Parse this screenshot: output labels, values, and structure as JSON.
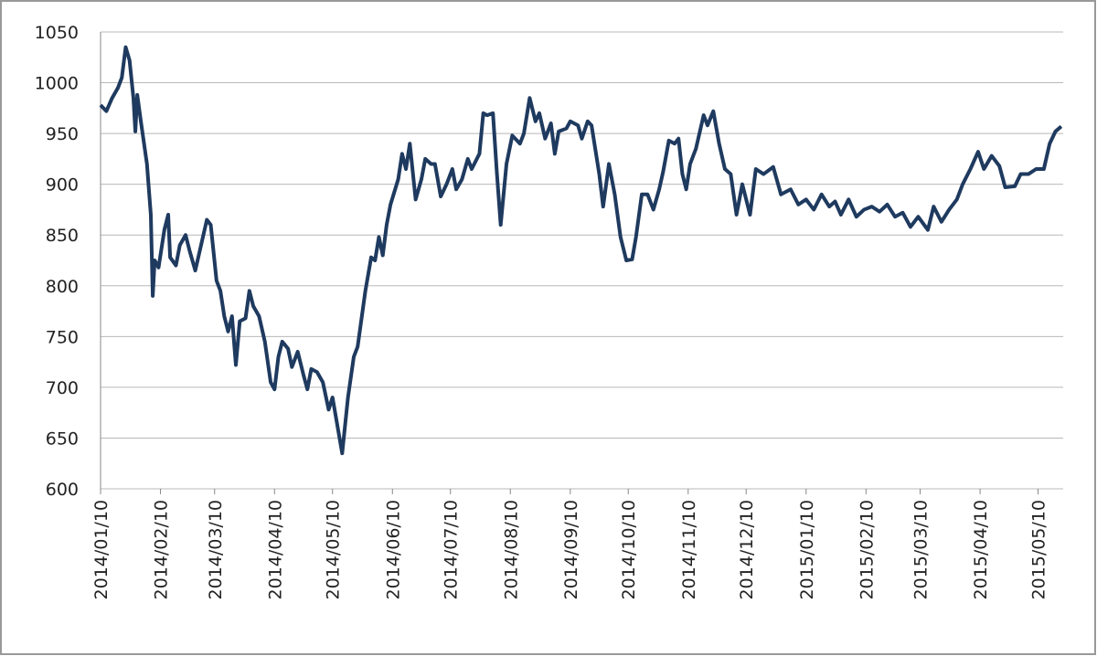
{
  "chart_data": {
    "type": "line",
    "color": "#1f3a5f",
    "grid": true,
    "x": [
      "2014/01/10",
      "2014/01/13",
      "2014/01/16",
      "2014/01/19",
      "2014/01/21",
      "2014/01/23",
      "2014/01/25",
      "2014/01/27",
      "2014/01/28",
      "2014/01/29",
      "2014/01/31",
      "2014/02/03",
      "2014/02/05",
      "2014/02/06",
      "2014/02/07",
      "2014/02/09",
      "2014/02/12",
      "2014/02/14",
      "2014/02/15",
      "2014/02/18",
      "2014/02/20",
      "2014/02/23",
      "2014/02/25",
      "2014/02/28",
      "2014/03/03",
      "2014/03/06",
      "2014/03/08",
      "2014/03/11",
      "2014/03/13",
      "2014/03/15",
      "2014/03/17",
      "2014/03/19",
      "2014/03/21",
      "2014/03/23",
      "2014/03/26",
      "2014/03/28",
      "2014/03/30",
      "2014/04/02",
      "2014/04/05",
      "2014/04/08",
      "2014/04/10",
      "2014/04/12",
      "2014/04/14",
      "2014/04/17",
      "2014/04/19",
      "2014/04/22",
      "2014/04/25",
      "2014/04/27",
      "2014/04/29",
      "2014/05/02",
      "2014/05/05",
      "2014/05/08",
      "2014/05/10",
      "2014/05/12",
      "2014/05/15",
      "2014/05/18",
      "2014/05/21",
      "2014/05/23",
      "2014/05/27",
      "2014/05/30",
      "2014/06/01",
      "2014/06/03",
      "2014/06/05",
      "2014/06/07",
      "2014/06/09",
      "2014/06/13",
      "2014/06/15",
      "2014/06/17",
      "2014/06/19",
      "2014/06/22",
      "2014/06/25",
      "2014/06/27",
      "2014/06/30",
      "2014/07/02",
      "2014/07/05",
      "2014/07/08",
      "2014/07/11",
      "2014/07/13",
      "2014/07/16",
      "2014/07/19",
      "2014/07/21",
      "2014/07/25",
      "2014/07/27",
      "2014/07/29",
      "2014/08/01",
      "2014/08/03",
      "2014/08/05",
      "2014/08/08",
      "2014/08/11",
      "2014/08/15",
      "2014/08/17",
      "2014/08/20",
      "2014/08/23",
      "2014/08/25",
      "2014/08/28",
      "2014/08/31",
      "2014/09/02",
      "2014/09/04",
      "2014/09/08",
      "2014/09/10",
      "2014/09/14",
      "2014/09/16",
      "2014/09/19",
      "2014/09/21",
      "2014/09/25",
      "2014/09/27",
      "2014/09/30",
      "2014/10/03",
      "2014/10/06",
      "2014/10/09",
      "2014/10/12",
      "2014/10/14",
      "2014/10/17",
      "2014/10/20",
      "2014/10/23",
      "2014/10/26",
      "2014/10/28",
      "2014/10/31",
      "2014/11/03",
      "2014/11/05",
      "2014/11/07",
      "2014/11/09",
      "2014/11/11",
      "2014/11/14",
      "2014/11/18",
      "2014/11/20",
      "2014/11/23",
      "2014/11/26",
      "2014/11/29",
      "2014/12/02",
      "2014/12/05",
      "2014/12/08",
      "2014/12/12",
      "2014/12/15",
      "2014/12/19",
      "2014/12/24",
      "2014/12/28",
      "2015/01/02",
      "2015/01/06",
      "2015/01/10",
      "2015/01/14",
      "2015/01/18",
      "2015/01/22",
      "2015/01/25",
      "2015/01/28",
      "2015/02/01",
      "2015/02/05",
      "2015/02/09",
      "2015/02/13",
      "2015/02/17",
      "2015/02/21",
      "2015/02/25",
      "2015/03/01",
      "2015/03/05",
      "2015/03/09",
      "2015/03/14",
      "2015/03/17",
      "2015/03/21",
      "2015/03/25",
      "2015/03/29",
      "2015/04/01",
      "2015/04/05",
      "2015/04/09",
      "2015/04/12",
      "2015/04/16",
      "2015/04/20",
      "2015/04/23",
      "2015/04/28",
      "2015/05/01",
      "2015/05/05",
      "2015/05/09",
      "2015/05/13",
      "2015/05/16",
      "2015/05/19",
      "2015/05/22"
    ],
    "values": [
      978,
      972,
      985,
      995,
      1005,
      1035,
      1022,
      985,
      952,
      988,
      960,
      920,
      870,
      790,
      825,
      818,
      855,
      870,
      828,
      820,
      840,
      850,
      835,
      815,
      840,
      865,
      860,
      805,
      795,
      770,
      755,
      770,
      722,
      765,
      768,
      795,
      780,
      770,
      745,
      705,
      698,
      730,
      745,
      738,
      720,
      735,
      712,
      698,
      718,
      715,
      705,
      678,
      690,
      668,
      635,
      690,
      730,
      740,
      795,
      828,
      825,
      848,
      830,
      860,
      880,
      905,
      930,
      915,
      940,
      885,
      905,
      925,
      920,
      920,
      888,
      900,
      915,
      895,
      905,
      925,
      915,
      930,
      970,
      968,
      970,
      912,
      860,
      920,
      948,
      940,
      950,
      985,
      962,
      970,
      945,
      960,
      930,
      952,
      955,
      962,
      958,
      945,
      962,
      958,
      910,
      878,
      920,
      890,
      848,
      825,
      826,
      848,
      890,
      890,
      875,
      895,
      912,
      943,
      940,
      945,
      910,
      895,
      920,
      935,
      968,
      958,
      972,
      940,
      915,
      910,
      870,
      900,
      870,
      915,
      910,
      917,
      890,
      895,
      880,
      885,
      875,
      890,
      878,
      883,
      870,
      885,
      868,
      875,
      878,
      873,
      880,
      868,
      872,
      858,
      868,
      855,
      878,
      863,
      875,
      885,
      900,
      915,
      932,
      915,
      928,
      918,
      897,
      898,
      910,
      910,
      915,
      915,
      940,
      952,
      957
    ],
    "xlim": [
      "2014/01/10",
      "2015/05/23"
    ],
    "xticks": [
      "2014/01/10",
      "2014/02/10",
      "2014/03/10",
      "2014/04/10",
      "2014/05/10",
      "2014/06/10",
      "2014/07/10",
      "2014/08/10",
      "2014/09/10",
      "2014/10/10",
      "2014/11/10",
      "2014/12/10",
      "2015/01/10",
      "2015/02/10",
      "2015/03/10",
      "2015/04/10",
      "2015/05/10"
    ],
    "ylim": [
      600,
      1050
    ],
    "yticks": [
      600,
      650,
      700,
      750,
      800,
      850,
      900,
      950,
      1000,
      1050
    ]
  }
}
